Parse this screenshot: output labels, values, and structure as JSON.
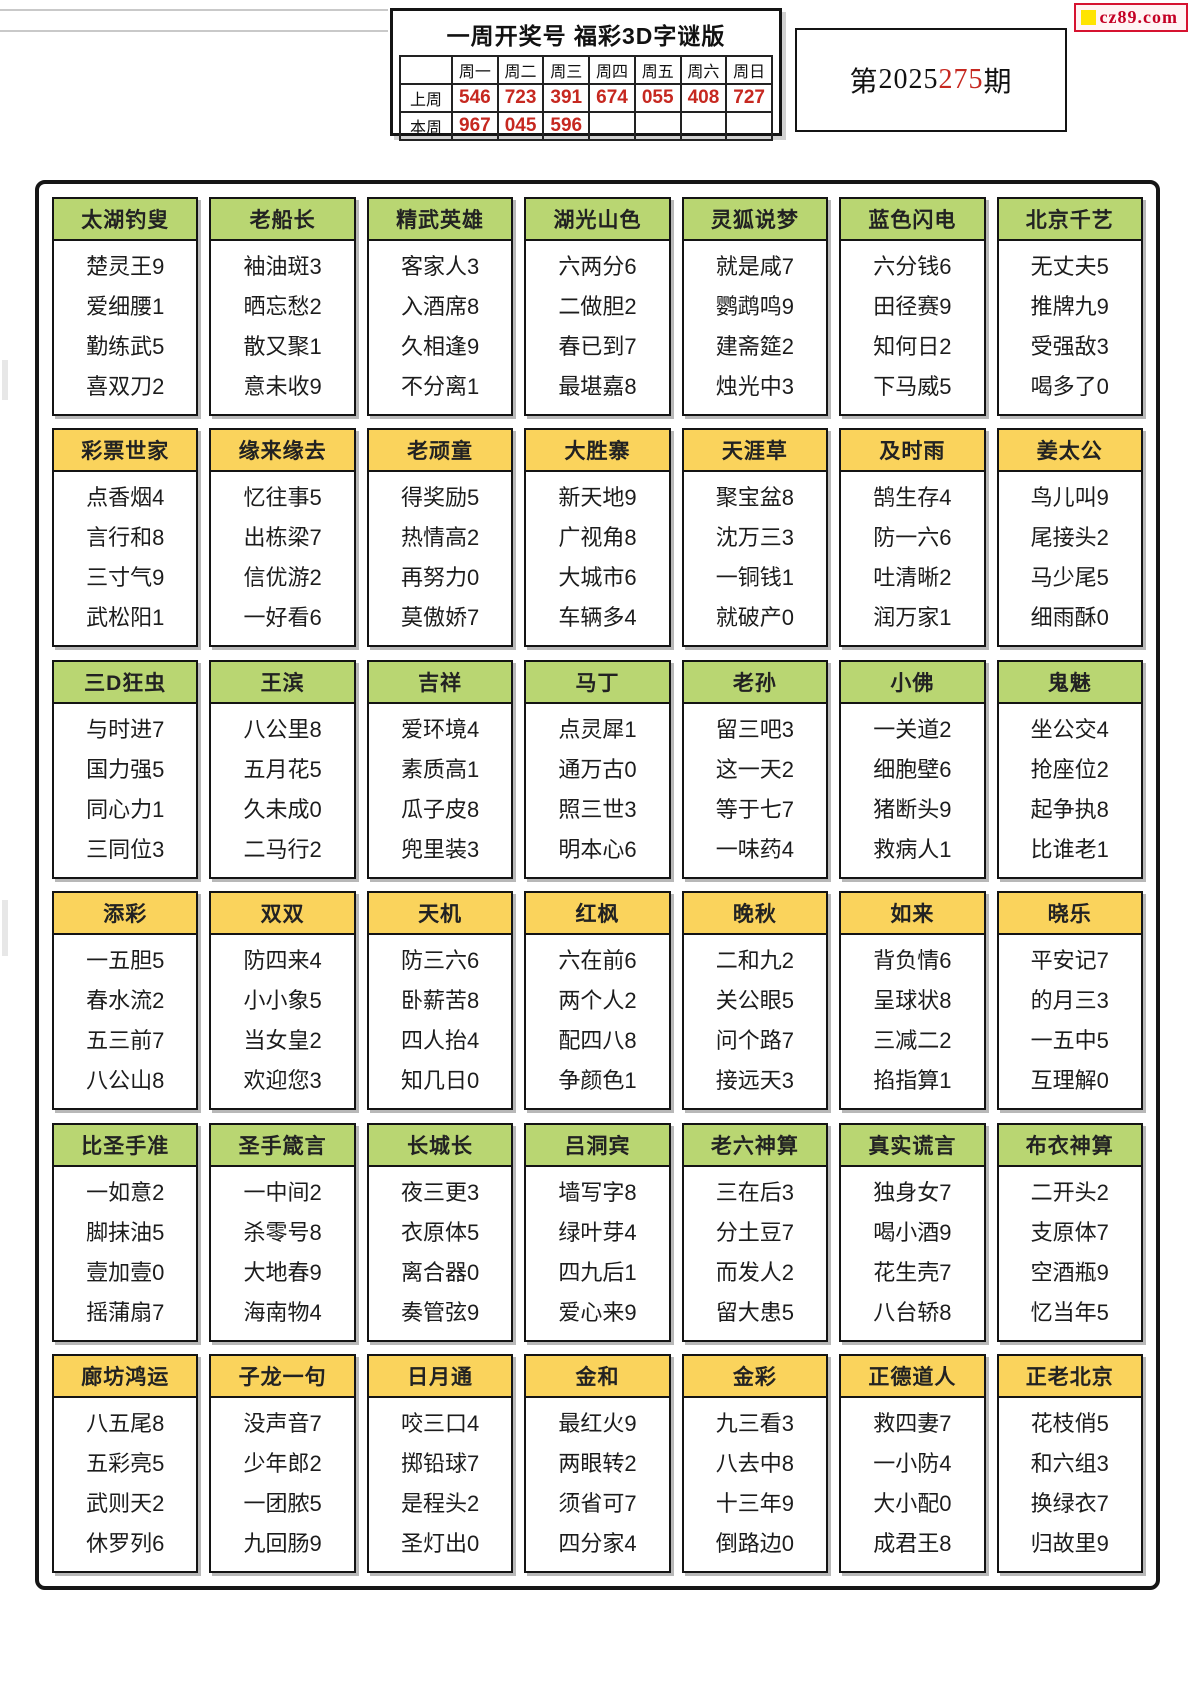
{
  "logo": {
    "text": "cz89.com"
  },
  "issue": {
    "prefix": "第",
    "black": "2025",
    "red": "275",
    "suffix": "期"
  },
  "week_table": {
    "title": "一周开奖号 福彩3D字谜版",
    "day_headers": [
      "周一",
      "周二",
      "周三",
      "周四",
      "周五",
      "周六",
      "周日"
    ],
    "rows": [
      {
        "label": "上周",
        "values": [
          "546",
          "723",
          "391",
          "674",
          "055",
          "408",
          "727"
        ]
      },
      {
        "label": "本周",
        "values": [
          "967",
          "045",
          "596",
          "",
          "",
          "",
          ""
        ]
      }
    ]
  },
  "colors": {
    "green": "#b9d672",
    "yellow": "#fad35c",
    "red": "#c62820"
  },
  "card_rows": [
    {
      "color": "green",
      "cards": [
        {
          "title": "太湖钓叟",
          "lines": [
            "楚灵王9",
            "爱细腰1",
            "勤练武5",
            "喜双刀2"
          ]
        },
        {
          "title": "老船长",
          "lines": [
            "袖油斑3",
            "晒忘愁2",
            "散又聚1",
            "意未收9"
          ]
        },
        {
          "title": "精武英雄",
          "lines": [
            "客家人3",
            "入酒席8",
            "久相逢9",
            "不分离1"
          ]
        },
        {
          "title": "湖光山色",
          "lines": [
            "六两分6",
            "二做胆2",
            "春已到7",
            "最堪嘉8"
          ]
        },
        {
          "title": "灵狐说梦",
          "lines": [
            "就是咸7",
            "鹦鹉鸣9",
            "建斋筵2",
            "烛光中3"
          ]
        },
        {
          "title": "蓝色闪电",
          "lines": [
            "六分钱6",
            "田径赛9",
            "知何日2",
            "下马威5"
          ]
        },
        {
          "title": "北京千艺",
          "lines": [
            "无丈夫5",
            "推牌九9",
            "受强敌3",
            "喝多了0"
          ]
        }
      ]
    },
    {
      "color": "yellow",
      "cards": [
        {
          "title": "彩票世家",
          "lines": [
            "点香烟4",
            "言行和8",
            "三寸气9",
            "武松阳1"
          ]
        },
        {
          "title": "缘来缘去",
          "lines": [
            "忆往事5",
            "出栋梁7",
            "信优游2",
            "一好看6"
          ]
        },
        {
          "title": "老顽童",
          "lines": [
            "得奖励5",
            "热情高2",
            "再努力0",
            "莫傲娇7"
          ]
        },
        {
          "title": "大胜寨",
          "lines": [
            "新天地9",
            "广视角8",
            "大城市6",
            "车辆多4"
          ]
        },
        {
          "title": "天涯草",
          "lines": [
            "聚宝盆8",
            "沈万三3",
            "一铜钱1",
            "就破产0"
          ]
        },
        {
          "title": "及时雨",
          "lines": [
            "鹄生存4",
            "防一六6",
            "吐清晰2",
            "润万家1"
          ]
        },
        {
          "title": "姜太公",
          "lines": [
            "鸟儿叫9",
            "尾接头2",
            "马少尾5",
            "细雨酥0"
          ]
        }
      ]
    },
    {
      "color": "green",
      "cards": [
        {
          "title": "三D狂虫",
          "lines": [
            "与时进7",
            "国力强5",
            "同心力1",
            "三同位3"
          ]
        },
        {
          "title": "王滨",
          "lines": [
            "八公里8",
            "五月花5",
            "久未成0",
            "二马行2"
          ]
        },
        {
          "title": "吉祥",
          "lines": [
            "爱环境4",
            "素质高1",
            "瓜子皮8",
            "兜里装3"
          ]
        },
        {
          "title": "马丁",
          "lines": [
            "点灵犀1",
            "通万古0",
            "照三世3",
            "明本心6"
          ]
        },
        {
          "title": "老孙",
          "lines": [
            "留三吧3",
            "这一天2",
            "等于七7",
            "一味药4"
          ]
        },
        {
          "title": "小佛",
          "lines": [
            "一关道2",
            "细胞壁6",
            "猪断头9",
            "救病人1"
          ]
        },
        {
          "title": "鬼魅",
          "lines": [
            "坐公交4",
            "抢座位2",
            "起争执8",
            "比谁老1"
          ]
        }
      ]
    },
    {
      "color": "yellow",
      "cards": [
        {
          "title": "添彩",
          "lines": [
            "一五胆5",
            "春水流2",
            "五三前7",
            "八公山8"
          ]
        },
        {
          "title": "双双",
          "lines": [
            "防四来4",
            "小小象5",
            "当女皇2",
            "欢迎您3"
          ]
        },
        {
          "title": "天机",
          "lines": [
            "防三六6",
            "卧薪苦8",
            "四人抬4",
            "知几日0"
          ]
        },
        {
          "title": "红枫",
          "lines": [
            "六在前6",
            "两个人2",
            "配四八8",
            "争颜色1"
          ]
        },
        {
          "title": "晚秋",
          "lines": [
            "二和九2",
            "关公眼5",
            "问个路7",
            "接远天3"
          ]
        },
        {
          "title": "如来",
          "lines": [
            "背负情6",
            "呈球状8",
            "三减二2",
            "掐指算1"
          ]
        },
        {
          "title": "晓乐",
          "lines": [
            "平安记7",
            "的月三3",
            "一五中5",
            "互理解0"
          ]
        }
      ]
    },
    {
      "color": "green",
      "cards": [
        {
          "title": "比圣手准",
          "lines": [
            "一如意2",
            "脚抹油5",
            "壹加壹0",
            "摇蒲扇7"
          ]
        },
        {
          "title": "圣手箴言",
          "lines": [
            "一中间2",
            "杀零号8",
            "大地春9",
            "海南物4"
          ]
        },
        {
          "title": "长城长",
          "lines": [
            "夜三更3",
            "衣原体5",
            "离合器0",
            "奏管弦9"
          ]
        },
        {
          "title": "吕洞宾",
          "lines": [
            "墙写字8",
            "绿叶芽4",
            "四九后1",
            "爱心来9"
          ]
        },
        {
          "title": "老六神算",
          "lines": [
            "三在后3",
            "分土豆7",
            "而发人2",
            "留大患5"
          ]
        },
        {
          "title": "真实谎言",
          "lines": [
            "独身女7",
            "喝小酒9",
            "花生壳7",
            "八台轿8"
          ]
        },
        {
          "title": "布衣神算",
          "lines": [
            "二开头2",
            "支原体7",
            "空酒瓶9",
            "忆当年5"
          ]
        }
      ]
    },
    {
      "color": "yellow",
      "cards": [
        {
          "title": "廊坊鸿运",
          "lines": [
            "八五尾8",
            "五彩亮5",
            "武则天2",
            "休罗列6"
          ]
        },
        {
          "title": "子龙一句",
          "lines": [
            "没声音7",
            "少年郎2",
            "一团脓5",
            "九回肠9"
          ]
        },
        {
          "title": "日月通",
          "lines": [
            "咬三口4",
            "掷铅球7",
            "是程头2",
            "圣灯出0"
          ]
        },
        {
          "title": "金和",
          "lines": [
            "最红火9",
            "两眼转2",
            "须省可7",
            "四分家4"
          ]
        },
        {
          "title": "金彩",
          "lines": [
            "九三看3",
            "八去中8",
            "十三年9",
            "倒路边0"
          ]
        },
        {
          "title": "正德道人",
          "lines": [
            "救四妻7",
            "一小防4",
            "大小配0",
            "成君王8"
          ]
        },
        {
          "title": "正老北京",
          "lines": [
            "花枝俏5",
            "和六组3",
            "换绿衣7",
            "归故里9"
          ]
        }
      ]
    }
  ]
}
